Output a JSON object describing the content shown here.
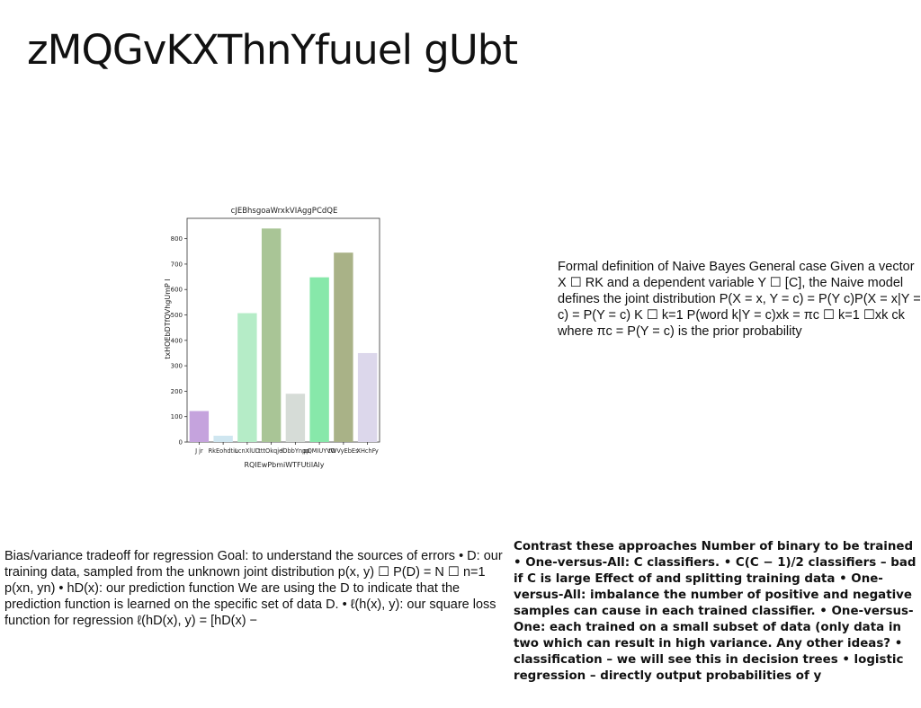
{
  "slide": {
    "title": "zMQGvKXThnYfuuel gUbt"
  },
  "text_blocks": {
    "naive_bayes": "Formal definition of Naive Bayes General case Given a vector X ☐ RK and a dependent variable Y ☐ [C], the Naive model defines the joint distribution P(X = x, Y = c) = P(Y c)P(X = x|Y = c) = P(Y = c) K ☐ k=1 P(word k|Y = c)xk = πc ☐ k=1 ☐xk ck where πc = P(Y = c) is the prior probability",
    "bias_variance": "Bias/variance tradeoff for regression Goal: to understand the sources of errors • D: our training data, sampled from the unknown joint distribution p(x, y) ☐ P(D) = N ☐ n=1 p(xn, yn) • hD(x): our prediction function We are using the D to indicate that the prediction function is learned on the specific set of data D. • ℓ(h(x), y): our square loss function for regression ℓ(hD(x), y) = [hD(x) −",
    "one_vs_rest": "Contrast these approaches Number of binary to be trained • One-versus-All: C classifiers. • C(C − 1)/2 classifiers – bad if C is large Effect of and splitting training data • One-versus-All: imbalance the number of positive and negative samples can cause in each trained classifier. • One-versus-One: each trained on a small subset of data (only data in two which can result in high variance. Any other ideas? • classification – we will see this in decision trees • logistic regression – directly output probabilities of y"
  },
  "chart_data": {
    "type": "bar",
    "title": "cJEBhsgoaWrxkVIAggPCdQE",
    "xlabel": "RQIEwPbmiWTFUtilAly",
    "ylabel": "txHOEbDTfQVhgUmP I",
    "categories": [
      "J jr",
      "RkEohdtiL",
      "ucnXlUD",
      "tttOkqjel",
      "IObbYnpp",
      "pQMIUYVO",
      "tWVyEbEs",
      "XHchFy"
    ],
    "values": [
      122,
      25,
      507,
      840,
      190,
      648,
      745,
      350
    ],
    "colors": [
      "#c5a3dd",
      "#cfe6f0",
      "#b5ecc7",
      "#a9c596",
      "#d6dcd7",
      "#87e8aa",
      "#a9b287",
      "#dcd7eb"
    ],
    "ylim": [
      0,
      880
    ],
    "yticks": [
      0,
      100,
      200,
      300,
      400,
      500,
      600,
      700,
      800
    ],
    "grid": false,
    "legend": "none"
  }
}
